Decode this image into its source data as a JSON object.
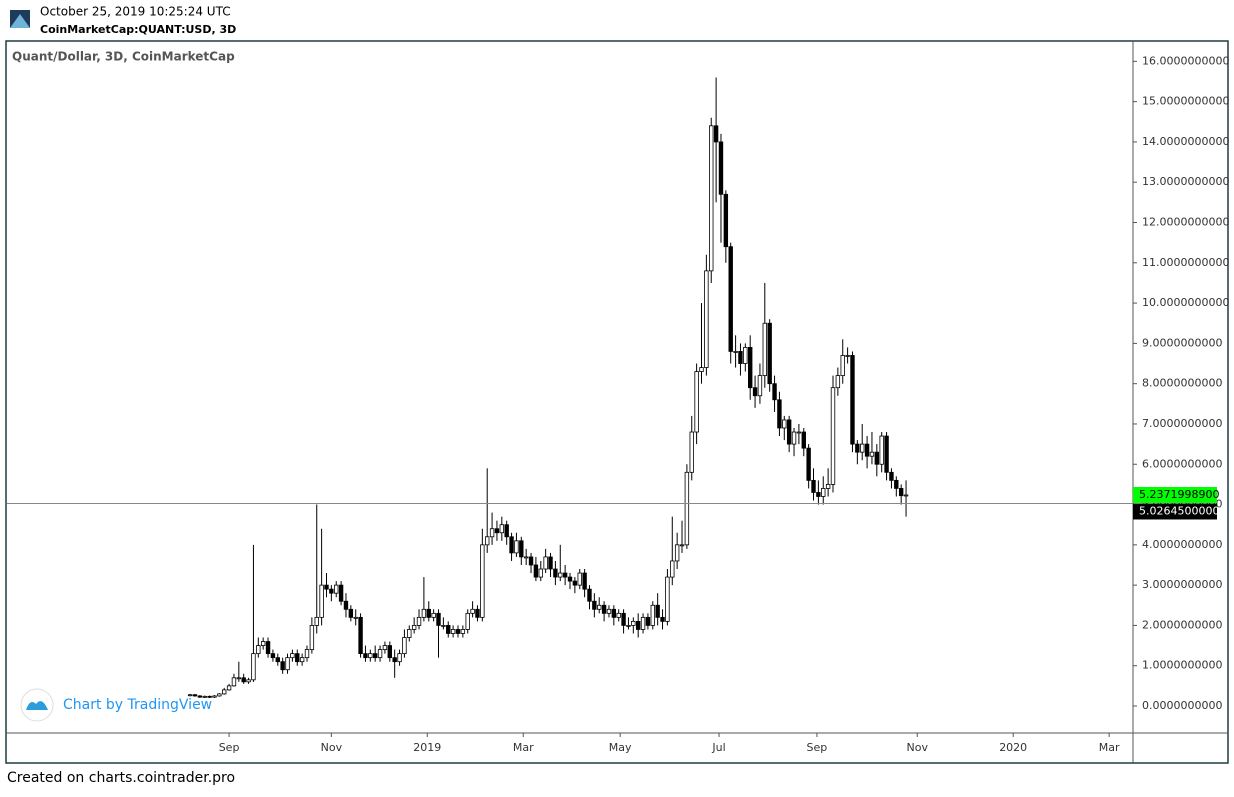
{
  "header": {
    "datetime": "October 25, 2019 10:25:24 UTC",
    "symbol": "CoinMarketCap:QUANT:USD, 3D"
  },
  "watermark": "Chart by TradingView",
  "footer": "Created on charts.cointrader.pro",
  "chart_data": {
    "type": "candlestick",
    "title": "Quant/Dollar, 3D, CoinMarketCap",
    "categories": [
      null,
      null,
      null,
      null,
      null,
      null,
      null,
      null,
      null,
      null,
      null,
      null,
      null,
      null,
      null,
      null,
      null,
      null,
      null,
      null,
      null,
      null,
      null,
      null,
      null,
      null,
      null,
      null,
      null,
      null,
      null,
      null,
      null,
      null,
      null,
      null,
      null,
      null,
      null,
      null,
      null,
      null,
      null,
      null,
      null,
      null,
      null,
      null,
      null,
      null,
      null,
      null,
      null,
      null,
      null,
      null,
      null,
      null,
      null,
      null,
      null,
      null,
      null,
      null,
      null,
      null,
      null,
      null,
      null,
      null,
      null,
      null,
      null,
      null,
      null,
      null,
      null,
      null,
      null,
      null,
      null,
      null,
      null,
      null,
      null,
      null,
      null,
      null,
      null,
      null,
      null,
      null,
      null,
      null,
      null,
      null,
      null,
      null,
      null,
      null,
      null,
      null,
      null,
      null,
      null,
      null,
      null,
      null,
      null,
      null,
      null,
      null,
      null,
      null,
      null,
      null,
      null,
      null,
      null,
      null,
      null,
      null,
      null,
      null,
      null,
      null,
      null,
      null,
      null,
      null,
      null,
      null,
      null,
      null,
      null,
      null,
      null,
      null,
      null,
      null,
      null,
      null,
      null,
      null,
      null,
      null,
      null,
      null
    ],
    "open": [
      0.26,
      0.28,
      0.25,
      0.22,
      0.24,
      0.22,
      0.25,
      0.3,
      0.4,
      0.5,
      0.7,
      0.7,
      0.6,
      0.65,
      1.3,
      1.5,
      1.6,
      1.3,
      1.2,
      1.1,
      0.9,
      1.2,
      1.3,
      1.1,
      1.2,
      1.4,
      2.0,
      2.2,
      3.0,
      2.9,
      2.8,
      3.0,
      2.6,
      2.4,
      2.2,
      2.2,
      1.3,
      1.2,
      1.3,
      1.2,
      1.4,
      1.5,
      1.2,
      1.1,
      1.3,
      1.7,
      1.9,
      2.0,
      2.2,
      2.4,
      2.2,
      2.3,
      2.0,
      2.0,
      1.8,
      1.9,
      1.8,
      1.9,
      2.3,
      2.4,
      2.2,
      4.0,
      4.2,
      4.4,
      4.3,
      4.5,
      4.2,
      3.8,
      4.1,
      3.7,
      3.7,
      3.5,
      3.2,
      3.4,
      3.7,
      3.4,
      3.2,
      3.3,
      3.2,
      3.1,
      3.0,
      3.3,
      2.9,
      2.6,
      2.4,
      2.5,
      2.3,
      2.4,
      2.2,
      2.3,
      2.0,
      2.0,
      2.1,
      1.9,
      2.2,
      2.0,
      2.5,
      2.2,
      2.1,
      3.2,
      3.6,
      4.0,
      4.0,
      5.8,
      6.8,
      8.3,
      8.4,
      10.8,
      14.4,
      14.0,
      12.7,
      11.4,
      8.8,
      8.8,
      8.5,
      8.9,
      7.9,
      7.7,
      8.2,
      9.5,
      8.0,
      7.6,
      6.9,
      7.1,
      6.5,
      6.8,
      6.8,
      6.4,
      5.6,
      5.3,
      5.2,
      5.4,
      5.5,
      7.9,
      8.2,
      8.7,
      8.7,
      6.5,
      6.3,
      6.5,
      6.2,
      6.3,
      6.0,
      6.7,
      5.8,
      5.6,
      5.4,
      5.22
    ],
    "high": [
      0.3,
      0.3,
      0.27,
      0.26,
      0.26,
      0.27,
      0.32,
      0.45,
      0.55,
      0.8,
      1.1,
      0.8,
      0.7,
      4.0,
      1.7,
      1.7,
      1.7,
      1.4,
      1.3,
      1.2,
      1.3,
      1.4,
      1.4,
      1.3,
      1.5,
      2.2,
      5.0,
      4.4,
      3.3,
      3.0,
      3.1,
      3.1,
      2.8,
      2.5,
      2.4,
      2.3,
      1.5,
      1.4,
      1.5,
      1.5,
      1.6,
      1.6,
      1.4,
      1.4,
      1.9,
      2.0,
      2.2,
      2.4,
      3.2,
      2.6,
      2.4,
      2.4,
      2.2,
      2.1,
      2.0,
      2.0,
      2.0,
      2.4,
      2.6,
      2.5,
      4.4,
      5.9,
      4.8,
      4.6,
      4.7,
      4.6,
      4.3,
      4.3,
      4.2,
      3.9,
      3.8,
      3.7,
      3.6,
      3.9,
      3.8,
      3.6,
      4.0,
      3.5,
      3.3,
      3.2,
      3.4,
      3.4,
      3.0,
      2.8,
      2.7,
      2.6,
      2.5,
      2.5,
      2.4,
      2.4,
      2.2,
      2.2,
      2.3,
      2.3,
      2.3,
      2.6,
      2.8,
      2.4,
      3.4,
      4.7,
      4.3,
      4.6,
      6.0,
      7.2,
      8.5,
      10.0,
      11.2,
      14.6,
      15.6,
      14.2,
      12.8,
      11.5,
      9.2,
      9.0,
      9.0,
      9.2,
      8.2,
      8.5,
      10.5,
      9.6,
      8.2,
      7.8,
      7.2,
      7.2,
      6.9,
      7.0,
      6.9,
      6.5,
      5.9,
      5.6,
      5.7,
      5.9,
      8.2,
      8.4,
      9.1,
      8.9,
      8.8,
      6.6,
      7.0,
      6.7,
      6.8,
      6.5,
      6.8,
      6.8,
      5.9,
      5.7,
      5.5,
      5.6
    ],
    "low": [
      0.24,
      0.23,
      0.2,
      0.2,
      0.2,
      0.2,
      0.23,
      0.28,
      0.38,
      0.48,
      0.6,
      0.55,
      0.55,
      0.6,
      1.2,
      1.4,
      1.2,
      1.1,
      1.0,
      0.8,
      0.8,
      1.1,
      1.0,
      1.0,
      1.1,
      1.3,
      1.8,
      2.0,
      2.7,
      2.6,
      2.7,
      2.5,
      2.2,
      2.1,
      2.0,
      1.2,
      1.1,
      1.1,
      1.1,
      1.1,
      1.3,
      1.1,
      0.7,
      1.0,
      1.2,
      1.6,
      1.8,
      1.9,
      2.1,
      2.1,
      2.1,
      1.2,
      1.9,
      1.7,
      1.7,
      1.7,
      1.7,
      1.8,
      2.2,
      2.1,
      2.1,
      3.8,
      4.0,
      4.1,
      4.1,
      4.0,
      3.6,
      3.7,
      3.5,
      3.5,
      3.3,
      3.1,
      3.1,
      3.3,
      3.2,
      3.0,
      3.1,
      3.0,
      2.9,
      2.8,
      2.9,
      2.7,
      2.4,
      2.2,
      2.3,
      2.1,
      2.2,
      2.0,
      2.1,
      1.8,
      1.9,
      1.8,
      1.7,
      1.8,
      1.9,
      1.9,
      2.0,
      1.9,
      2.0,
      3.0,
      3.4,
      3.8,
      3.9,
      5.6,
      6.5,
      8.0,
      8.2,
      10.5,
      12.5,
      11.5,
      11.0,
      8.5,
      8.4,
      8.2,
      8.3,
      7.6,
      7.4,
      7.5,
      7.9,
      7.8,
      7.3,
      6.7,
      6.6,
      6.3,
      6.2,
      6.5,
      6.2,
      5.4,
      5.1,
      5.0,
      5.0,
      5.2,
      5.3,
      7.7,
      8.0,
      8.5,
      6.3,
      6.0,
      6.1,
      5.9,
      6.0,
      5.7,
      5.8,
      5.6,
      5.4,
      5.2,
      5.0,
      4.7
    ],
    "close": [
      0.28,
      0.25,
      0.22,
      0.24,
      0.22,
      0.25,
      0.3,
      0.4,
      0.5,
      0.7,
      0.7,
      0.6,
      0.65,
      1.3,
      1.5,
      1.6,
      1.3,
      1.2,
      1.1,
      0.9,
      1.2,
      1.3,
      1.1,
      1.2,
      1.4,
      2.0,
      2.2,
      3.0,
      2.9,
      2.8,
      3.0,
      2.6,
      2.4,
      2.2,
      2.2,
      1.3,
      1.2,
      1.3,
      1.2,
      1.4,
      1.5,
      1.2,
      1.1,
      1.3,
      1.7,
      1.9,
      2.0,
      2.2,
      2.4,
      2.2,
      2.3,
      2.0,
      2.0,
      1.8,
      1.9,
      1.8,
      1.9,
      2.3,
      2.4,
      2.2,
      4.0,
      4.2,
      4.4,
      4.3,
      4.5,
      4.2,
      3.8,
      4.1,
      3.7,
      3.7,
      3.5,
      3.2,
      3.4,
      3.7,
      3.4,
      3.2,
      3.3,
      3.2,
      3.1,
      3.0,
      3.3,
      2.9,
      2.6,
      2.4,
      2.5,
      2.3,
      2.4,
      2.2,
      2.3,
      2.0,
      2.0,
      2.1,
      1.9,
      2.2,
      2.0,
      2.5,
      2.2,
      2.1,
      3.2,
      3.6,
      4.0,
      4.0,
      5.8,
      6.8,
      8.3,
      8.4,
      10.8,
      14.4,
      14.0,
      12.7,
      11.4,
      8.8,
      8.8,
      8.5,
      8.9,
      7.9,
      7.7,
      8.2,
      9.5,
      8.0,
      7.6,
      6.9,
      7.1,
      6.5,
      6.8,
      6.8,
      6.4,
      5.6,
      5.3,
      5.2,
      5.4,
      5.5,
      7.9,
      8.2,
      8.7,
      8.7,
      6.5,
      6.3,
      6.5,
      6.2,
      6.3,
      6.0,
      6.7,
      5.8,
      5.6,
      5.4,
      5.22,
      5.23719989
    ],
    "up_color": "#ffffff",
    "down_color": "#000000",
    "wick_color": "#000000",
    "xlim": [
      -37.6,
      193.6
    ],
    "xticks": [
      {
        "value": 8,
        "label": "Sep"
      },
      {
        "value": 29,
        "label": "Nov"
      },
      {
        "value": 48.7,
        "label": "2019"
      },
      {
        "value": 68.4,
        "label": "Mar"
      },
      {
        "value": 88.3,
        "label": "May"
      },
      {
        "value": 108.6,
        "label": "Jul"
      },
      {
        "value": 128.7,
        "label": "Sep"
      },
      {
        "value": 149.3,
        "label": "Nov"
      },
      {
        "value": 169,
        "label": "2020"
      },
      {
        "value": 188.7,
        "label": "Mar"
      }
    ],
    "ylim": [
      -0.67,
      16.48
    ],
    "yticks": [
      {
        "value": 0,
        "label": "0.0000000000"
      },
      {
        "value": 1,
        "label": "1.0000000000"
      },
      {
        "value": 2,
        "label": "2.0000000000"
      },
      {
        "value": 3,
        "label": "3.0000000000"
      },
      {
        "value": 4,
        "label": "4.0000000000"
      },
      {
        "value": 5,
        "label": "5.0000000000"
      },
      {
        "value": 6,
        "label": "6.0000000000"
      },
      {
        "value": 7,
        "label": "7.0000000000"
      },
      {
        "value": 8,
        "label": "8.0000000000"
      },
      {
        "value": 9,
        "label": "9.0000000000"
      },
      {
        "value": 10,
        "label": "10.0000000000"
      },
      {
        "value": 11,
        "label": "11.0000000000"
      },
      {
        "value": 12,
        "label": "12.0000000000"
      },
      {
        "value": 13,
        "label": "13.0000000000"
      },
      {
        "value": 14,
        "label": "14.0000000000"
      },
      {
        "value": 15,
        "label": "15.0000000000"
      },
      {
        "value": 16,
        "label": "16.0000000000"
      }
    ],
    "grid": false,
    "last_price": {
      "value": 5.23719989,
      "label": "5.2371998900",
      "color": "#00ff00"
    },
    "price_line": {
      "value": 5.02645,
      "label": "5.0264500000",
      "color": "#000000"
    }
  }
}
